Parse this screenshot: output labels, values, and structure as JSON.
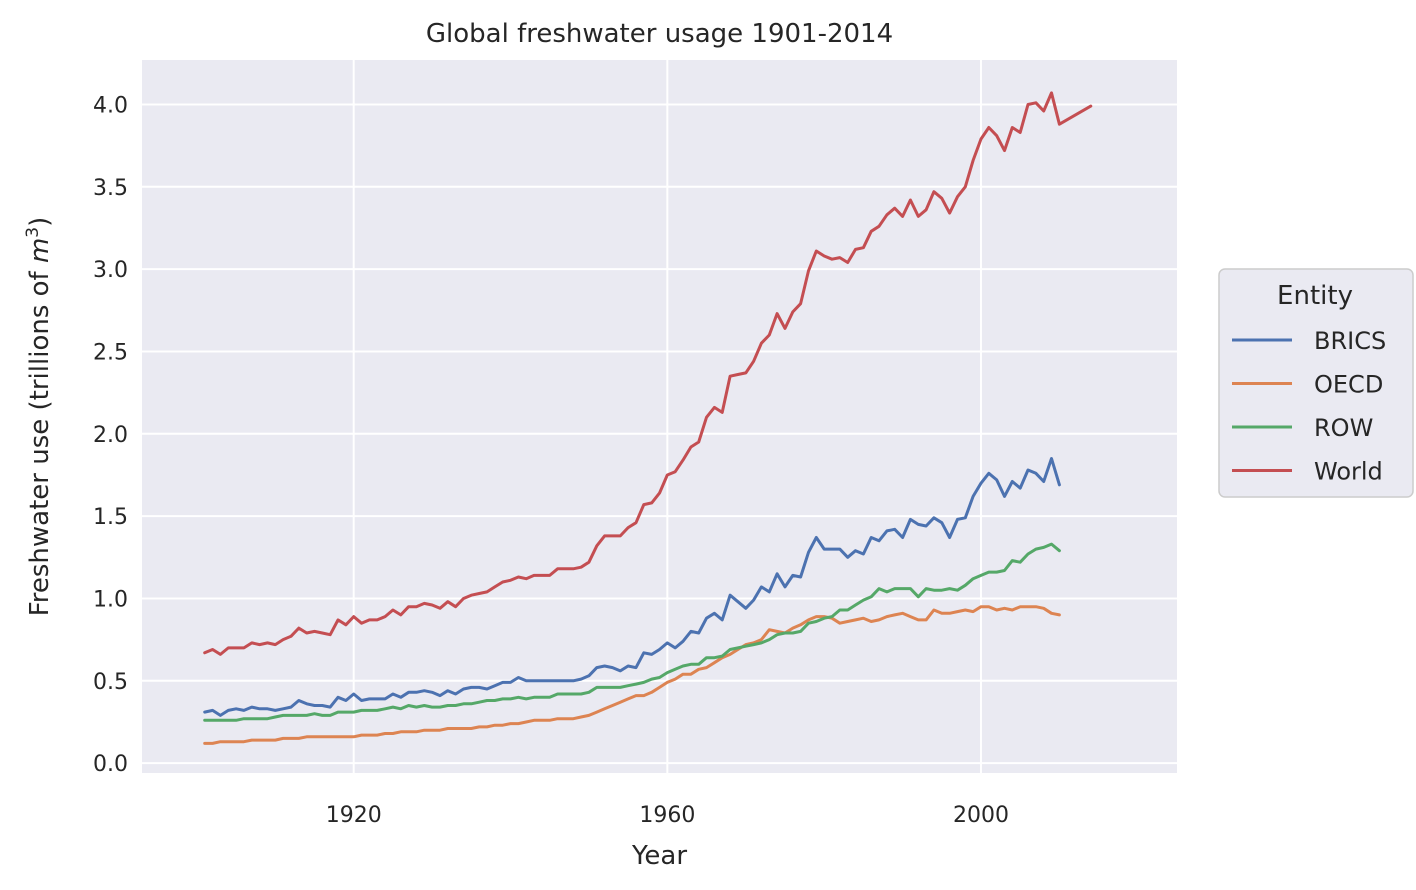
{
  "chart_data": {
    "type": "line",
    "title": "Global freshwater usage 1901-2014",
    "xlabel": "Year",
    "ylabel_prefix": "Freshwater use (trillions of ",
    "ylabel_unit": "m",
    "ylabel_exp": "3",
    "ylabel_suffix": ")",
    "xlim": [
      1893,
      2025
    ],
    "ylim": [
      -0.06,
      4.27
    ],
    "xticks": [
      1920,
      1960,
      2000
    ],
    "yticks": [
      0.0,
      0.5,
      1.0,
      1.5,
      2.0,
      2.5,
      3.0,
      3.5,
      4.0
    ],
    "xtick_labels": [
      "1920",
      "1960",
      "2000"
    ],
    "ytick_labels": [
      "0.0",
      "0.5",
      "1.0",
      "1.5",
      "2.0",
      "2.5",
      "3.0",
      "3.5",
      "4.0"
    ],
    "grid": true,
    "legend": {
      "title": "Entity",
      "placement": "outside-right"
    },
    "background": "#eaeaf2",
    "series": [
      {
        "name": "BRICS",
        "color": "#4c72b0",
        "x": [
          1901,
          1902,
          1903,
          1904,
          1905,
          1906,
          1907,
          1908,
          1909,
          1910,
          1911,
          1912,
          1913,
          1914,
          1915,
          1916,
          1917,
          1918,
          1919,
          1920,
          1921,
          1922,
          1923,
          1924,
          1925,
          1926,
          1927,
          1928,
          1929,
          1930,
          1931,
          1932,
          1933,
          1934,
          1935,
          1936,
          1937,
          1938,
          1939,
          1940,
          1941,
          1942,
          1943,
          1944,
          1945,
          1946,
          1947,
          1948,
          1949,
          1950,
          1951,
          1952,
          1953,
          1954,
          1955,
          1956,
          1957,
          1958,
          1959,
          1960,
          1961,
          1962,
          1963,
          1964,
          1965,
          1966,
          1967,
          1968,
          1969,
          1970,
          1971,
          1972,
          1973,
          1974,
          1975,
          1976,
          1977,
          1978,
          1979,
          1980,
          1981,
          1982,
          1983,
          1984,
          1985,
          1986,
          1987,
          1988,
          1989,
          1990,
          1991,
          1992,
          1993,
          1994,
          1995,
          1996,
          1997,
          1998,
          1999,
          2000,
          2001,
          2002,
          2003,
          2004,
          2005,
          2006,
          2007,
          2008,
          2009,
          2010
        ],
        "y": [
          0.31,
          0.32,
          0.29,
          0.32,
          0.33,
          0.32,
          0.34,
          0.33,
          0.33,
          0.32,
          0.33,
          0.34,
          0.38,
          0.36,
          0.35,
          0.35,
          0.34,
          0.4,
          0.38,
          0.42,
          0.38,
          0.39,
          0.39,
          0.39,
          0.42,
          0.4,
          0.43,
          0.43,
          0.44,
          0.43,
          0.41,
          0.44,
          0.42,
          0.45,
          0.46,
          0.46,
          0.45,
          0.47,
          0.49,
          0.49,
          0.52,
          0.5,
          0.5,
          0.5,
          0.5,
          0.5,
          0.5,
          0.5,
          0.51,
          0.53,
          0.58,
          0.59,
          0.58,
          0.56,
          0.59,
          0.58,
          0.67,
          0.66,
          0.69,
          0.73,
          0.7,
          0.74,
          0.8,
          0.79,
          0.88,
          0.91,
          0.87,
          1.02,
          0.98,
          0.94,
          0.99,
          1.07,
          1.04,
          1.15,
          1.07,
          1.14,
          1.13,
          1.28,
          1.37,
          1.3,
          1.3,
          1.3,
          1.25,
          1.29,
          1.27,
          1.37,
          1.35,
          1.41,
          1.42,
          1.37,
          1.48,
          1.45,
          1.44,
          1.49,
          1.46,
          1.37,
          1.48,
          1.49,
          1.62,
          1.7,
          1.76,
          1.72,
          1.62,
          1.71,
          1.67,
          1.78,
          1.76,
          1.71,
          1.85,
          1.69
        ]
      },
      {
        "name": "OECD",
        "color": "#dd8452",
        "x": [
          1901,
          1902,
          1903,
          1904,
          1905,
          1906,
          1907,
          1908,
          1909,
          1910,
          1911,
          1912,
          1913,
          1914,
          1915,
          1916,
          1917,
          1918,
          1919,
          1920,
          1921,
          1922,
          1923,
          1924,
          1925,
          1926,
          1927,
          1928,
          1929,
          1930,
          1931,
          1932,
          1933,
          1934,
          1935,
          1936,
          1937,
          1938,
          1939,
          1940,
          1941,
          1942,
          1943,
          1944,
          1945,
          1946,
          1947,
          1948,
          1949,
          1950,
          1951,
          1952,
          1953,
          1954,
          1955,
          1956,
          1957,
          1958,
          1959,
          1960,
          1961,
          1962,
          1963,
          1964,
          1965,
          1966,
          1967,
          1968,
          1969,
          1970,
          1971,
          1972,
          1973,
          1974,
          1975,
          1976,
          1977,
          1978,
          1979,
          1980,
          1981,
          1982,
          1983,
          1984,
          1985,
          1986,
          1987,
          1988,
          1989,
          1990,
          1991,
          1992,
          1993,
          1994,
          1995,
          1996,
          1997,
          1998,
          1999,
          2000,
          2001,
          2002,
          2003,
          2004,
          2005,
          2006,
          2007,
          2008,
          2009,
          2010
        ],
        "y": [
          0.12,
          0.12,
          0.13,
          0.13,
          0.13,
          0.13,
          0.14,
          0.14,
          0.14,
          0.14,
          0.15,
          0.15,
          0.15,
          0.16,
          0.16,
          0.16,
          0.16,
          0.16,
          0.16,
          0.16,
          0.17,
          0.17,
          0.17,
          0.18,
          0.18,
          0.19,
          0.19,
          0.19,
          0.2,
          0.2,
          0.2,
          0.21,
          0.21,
          0.21,
          0.21,
          0.22,
          0.22,
          0.23,
          0.23,
          0.24,
          0.24,
          0.25,
          0.26,
          0.26,
          0.26,
          0.27,
          0.27,
          0.27,
          0.28,
          0.29,
          0.31,
          0.33,
          0.35,
          0.37,
          0.39,
          0.41,
          0.41,
          0.43,
          0.46,
          0.49,
          0.51,
          0.54,
          0.54,
          0.57,
          0.58,
          0.61,
          0.64,
          0.66,
          0.69,
          0.72,
          0.73,
          0.75,
          0.81,
          0.8,
          0.79,
          0.82,
          0.84,
          0.87,
          0.89,
          0.89,
          0.88,
          0.85,
          0.86,
          0.87,
          0.88,
          0.86,
          0.87,
          0.89,
          0.9,
          0.91,
          0.89,
          0.87,
          0.87,
          0.93,
          0.91,
          0.91,
          0.92,
          0.93,
          0.92,
          0.95,
          0.95,
          0.93,
          0.94,
          0.93,
          0.95,
          0.95,
          0.95,
          0.94,
          0.91,
          0.9
        ]
      },
      {
        "name": "ROW",
        "color": "#55a868",
        "x": [
          1901,
          1902,
          1903,
          1904,
          1905,
          1906,
          1907,
          1908,
          1909,
          1910,
          1911,
          1912,
          1913,
          1914,
          1915,
          1916,
          1917,
          1918,
          1919,
          1920,
          1921,
          1922,
          1923,
          1924,
          1925,
          1926,
          1927,
          1928,
          1929,
          1930,
          1931,
          1932,
          1933,
          1934,
          1935,
          1936,
          1937,
          1938,
          1939,
          1940,
          1941,
          1942,
          1943,
          1944,
          1945,
          1946,
          1947,
          1948,
          1949,
          1950,
          1951,
          1952,
          1953,
          1954,
          1955,
          1956,
          1957,
          1958,
          1959,
          1960,
          1961,
          1962,
          1963,
          1964,
          1965,
          1966,
          1967,
          1968,
          1969,
          1970,
          1971,
          1972,
          1973,
          1974,
          1975,
          1976,
          1977,
          1978,
          1979,
          1980,
          1981,
          1982,
          1983,
          1984,
          1985,
          1986,
          1987,
          1988,
          1989,
          1990,
          1991,
          1992,
          1993,
          1994,
          1995,
          1996,
          1997,
          1998,
          1999,
          2000,
          2001,
          2002,
          2003,
          2004,
          2005,
          2006,
          2007,
          2008,
          2009,
          2010
        ],
        "y": [
          0.26,
          0.26,
          0.26,
          0.26,
          0.26,
          0.27,
          0.27,
          0.27,
          0.27,
          0.28,
          0.29,
          0.29,
          0.29,
          0.29,
          0.3,
          0.29,
          0.29,
          0.31,
          0.31,
          0.31,
          0.32,
          0.32,
          0.32,
          0.33,
          0.34,
          0.33,
          0.35,
          0.34,
          0.35,
          0.34,
          0.34,
          0.35,
          0.35,
          0.36,
          0.36,
          0.37,
          0.38,
          0.38,
          0.39,
          0.39,
          0.4,
          0.39,
          0.4,
          0.4,
          0.4,
          0.42,
          0.42,
          0.42,
          0.42,
          0.43,
          0.46,
          0.46,
          0.46,
          0.46,
          0.47,
          0.48,
          0.49,
          0.51,
          0.52,
          0.55,
          0.57,
          0.59,
          0.6,
          0.6,
          0.64,
          0.64,
          0.65,
          0.69,
          0.7,
          0.71,
          0.72,
          0.73,
          0.75,
          0.78,
          0.79,
          0.79,
          0.8,
          0.85,
          0.86,
          0.88,
          0.89,
          0.93,
          0.93,
          0.96,
          0.99,
          1.01,
          1.06,
          1.04,
          1.06,
          1.06,
          1.06,
          1.01,
          1.06,
          1.05,
          1.05,
          1.06,
          1.05,
          1.08,
          1.12,
          1.14,
          1.16,
          1.16,
          1.17,
          1.23,
          1.22,
          1.27,
          1.3,
          1.31,
          1.33,
          1.29
        ]
      },
      {
        "name": "World",
        "color": "#c44e52",
        "x": [
          1901,
          1902,
          1903,
          1904,
          1905,
          1906,
          1907,
          1908,
          1909,
          1910,
          1911,
          1912,
          1913,
          1914,
          1915,
          1916,
          1917,
          1918,
          1919,
          1920,
          1921,
          1922,
          1923,
          1924,
          1925,
          1926,
          1927,
          1928,
          1929,
          1930,
          1931,
          1932,
          1933,
          1934,
          1935,
          1936,
          1937,
          1938,
          1939,
          1940,
          1941,
          1942,
          1943,
          1944,
          1945,
          1946,
          1947,
          1948,
          1949,
          1950,
          1951,
          1952,
          1953,
          1954,
          1955,
          1956,
          1957,
          1958,
          1959,
          1960,
          1961,
          1962,
          1963,
          1964,
          1965,
          1966,
          1967,
          1968,
          1969,
          1970,
          1971,
          1972,
          1973,
          1974,
          1975,
          1976,
          1977,
          1978,
          1979,
          1980,
          1981,
          1982,
          1983,
          1984,
          1985,
          1986,
          1987,
          1988,
          1989,
          1990,
          1991,
          1992,
          1993,
          1994,
          1995,
          1996,
          1997,
          1998,
          1999,
          2000,
          2001,
          2002,
          2003,
          2004,
          2005,
          2006,
          2007,
          2008,
          2009,
          2010,
          2014
        ],
        "y": [
          0.67,
          0.69,
          0.66,
          0.7,
          0.7,
          0.7,
          0.73,
          0.72,
          0.73,
          0.72,
          0.75,
          0.77,
          0.82,
          0.79,
          0.8,
          0.79,
          0.78,
          0.87,
          0.84,
          0.89,
          0.85,
          0.87,
          0.87,
          0.89,
          0.93,
          0.9,
          0.95,
          0.95,
          0.97,
          0.96,
          0.94,
          0.98,
          0.95,
          1.0,
          1.02,
          1.03,
          1.04,
          1.07,
          1.1,
          1.11,
          1.13,
          1.12,
          1.14,
          1.14,
          1.14,
          1.18,
          1.18,
          1.18,
          1.19,
          1.22,
          1.32,
          1.38,
          1.38,
          1.38,
          1.43,
          1.46,
          1.57,
          1.58,
          1.64,
          1.75,
          1.77,
          1.84,
          1.92,
          1.95,
          2.1,
          2.16,
          2.13,
          2.35,
          2.36,
          2.37,
          2.44,
          2.55,
          2.6,
          2.73,
          2.64,
          2.74,
          2.79,
          2.99,
          3.11,
          3.08,
          3.06,
          3.07,
          3.04,
          3.12,
          3.13,
          3.23,
          3.26,
          3.33,
          3.37,
          3.32,
          3.42,
          3.32,
          3.36,
          3.47,
          3.43,
          3.34,
          3.44,
          3.5,
          3.66,
          3.79,
          3.86,
          3.81,
          3.72,
          3.86,
          3.83,
          4.0,
          4.01,
          3.96,
          4.07,
          3.88,
          3.99
        ]
      }
    ]
  }
}
